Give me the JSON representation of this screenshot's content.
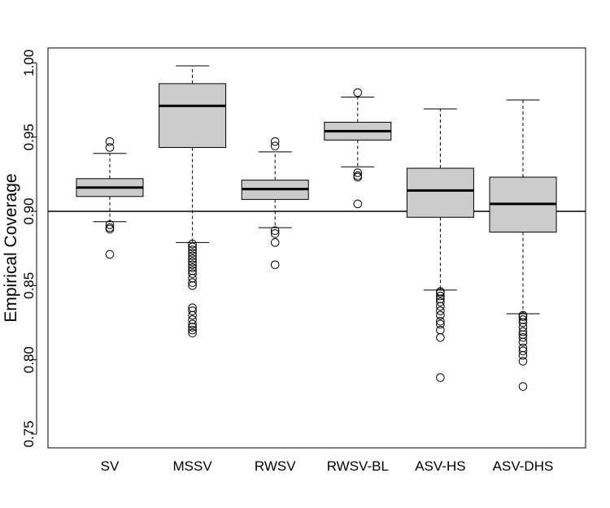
{
  "chart_data": {
    "type": "boxplot",
    "title": "",
    "xlabel": "",
    "ylabel": "Empirical Coverage",
    "ylim": [
      0.74,
      1.01
    ],
    "yticks": [
      "0.75",
      "0.80",
      "0.85",
      "0.90",
      "0.95",
      "1.00"
    ],
    "yticks_values": [
      0.75,
      0.8,
      0.85,
      0.9,
      0.95,
      1.0
    ],
    "reference_line": 0.9,
    "box_fill": "#cccccc",
    "categories": [
      "SV",
      "MSSV",
      "RWSV",
      "RWSV-BL",
      "ASV-HS",
      "ASV-DHS"
    ],
    "boxes": [
      {
        "label": "SV",
        "whisker_low": 0.893,
        "q1": 0.91,
        "median": 0.916,
        "q3": 0.922,
        "whisker_high": 0.939,
        "outliers": [
          0.871,
          0.888,
          0.889,
          0.891,
          0.943,
          0.947
        ]
      },
      {
        "label": "MSSV",
        "whisker_low": 0.879,
        "q1": 0.943,
        "median": 0.971,
        "q3": 0.986,
        "whisker_high": 0.998,
        "outliers": [
          0.878,
          0.876,
          0.874,
          0.872,
          0.87,
          0.868,
          0.866,
          0.864,
          0.862,
          0.86,
          0.858,
          0.855,
          0.852,
          0.85,
          0.835,
          0.833,
          0.83,
          0.827,
          0.824,
          0.822,
          0.82,
          0.818
        ]
      },
      {
        "label": "RWSV",
        "whisker_low": 0.889,
        "q1": 0.908,
        "median": 0.915,
        "q3": 0.921,
        "whisker_high": 0.94,
        "outliers": [
          0.864,
          0.879,
          0.885,
          0.887,
          0.944,
          0.947
        ]
      },
      {
        "label": "RWSV-BL",
        "whisker_low": 0.93,
        "q1": 0.948,
        "median": 0.954,
        "q3": 0.96,
        "whisker_high": 0.977,
        "outliers": [
          0.905,
          0.923,
          0.924,
          0.926,
          0.98
        ]
      },
      {
        "label": "ASV-HS",
        "whisker_low": 0.847,
        "q1": 0.896,
        "median": 0.914,
        "q3": 0.929,
        "whisker_high": 0.969,
        "outliers": [
          0.788,
          0.815,
          0.82,
          0.824,
          0.826,
          0.83,
          0.833,
          0.836,
          0.839,
          0.841,
          0.843,
          0.845,
          0.846
        ]
      },
      {
        "label": "ASV-DHS",
        "whisker_low": 0.831,
        "q1": 0.886,
        "median": 0.905,
        "q3": 0.923,
        "whisker_high": 0.975,
        "outliers": [
          0.782,
          0.799,
          0.803,
          0.806,
          0.808,
          0.812,
          0.815,
          0.817,
          0.819,
          0.822,
          0.825,
          0.827,
          0.829,
          0.83
        ]
      }
    ]
  }
}
